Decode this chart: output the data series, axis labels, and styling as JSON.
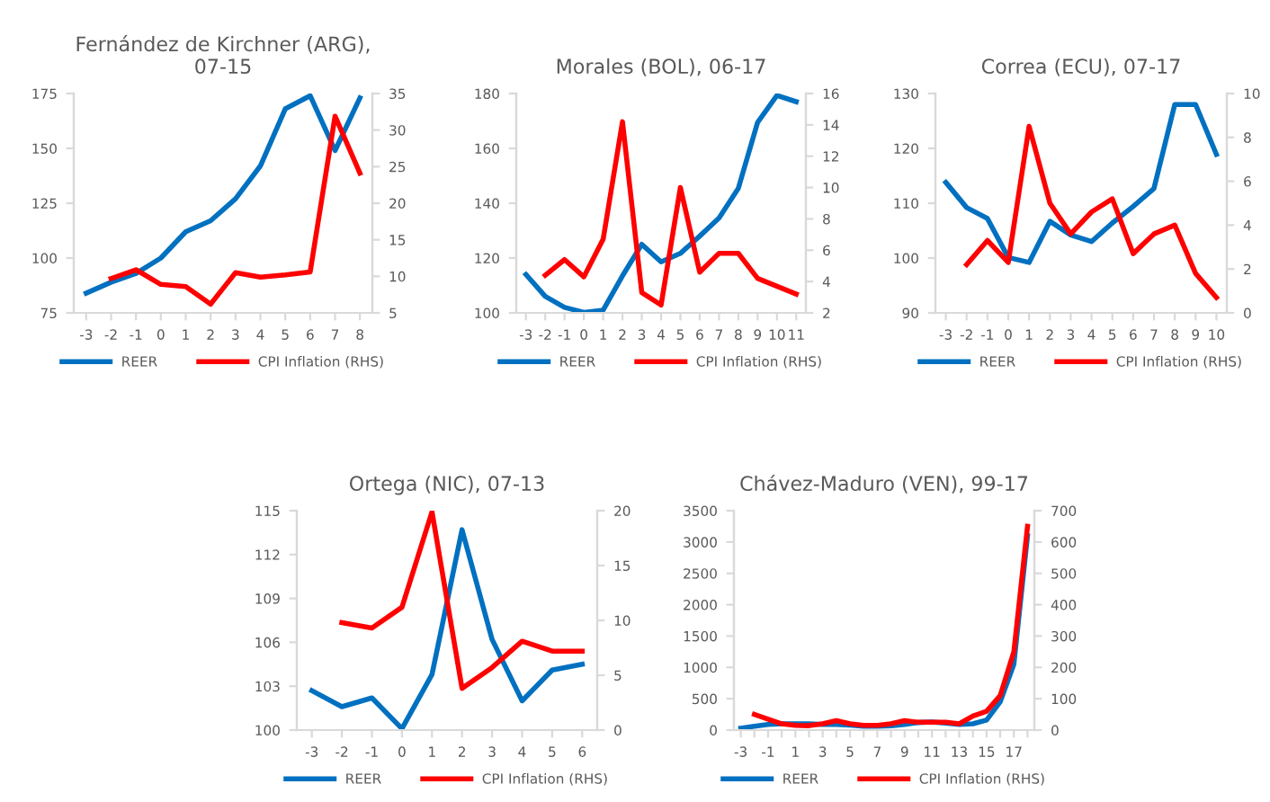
{
  "chart_data": [
    {
      "type": "line",
      "title": "Fernández de Kirchner (ARG),\n07-15",
      "categories": [
        "-3",
        "-2",
        "-1",
        "0",
        "1",
        "2",
        "3",
        "4",
        "5",
        "6",
        "7",
        "8"
      ],
      "ylim": [
        75,
        175
      ],
      "yticks": [
        75,
        100,
        125,
        150,
        175
      ],
      "y2lim": [
        5,
        35
      ],
      "y2ticks": [
        5,
        10,
        15,
        20,
        25,
        30,
        35
      ],
      "legend": "bottom",
      "series": [
        {
          "name": "REER",
          "color": "#0070c0",
          "values": [
            84,
            89,
            93,
            100,
            112,
            117,
            127,
            142,
            168,
            174,
            149,
            173
          ]
        },
        {
          "name": "CPI Inflation (RHS)",
          "color": "#ff0000",
          "axis": "y2",
          "values": [
            null,
            9.7,
            10.9,
            8.9,
            8.6,
            6.2,
            10.5,
            9.9,
            10.2,
            10.6,
            31.9,
            24.1
          ]
        }
      ]
    },
    {
      "type": "line",
      "title": "Morales (BOL), 06-17",
      "categories": [
        "-3",
        "-2",
        "-1",
        "0",
        "1",
        "2",
        "3",
        "4",
        "5",
        "6",
        "7",
        "8",
        "9",
        "10",
        "11"
      ],
      "ylim": [
        100,
        180
      ],
      "yticks": [
        100,
        120,
        140,
        160,
        180
      ],
      "y2lim": [
        2,
        16
      ],
      "y2ticks": [
        2,
        4,
        6,
        8,
        10,
        12,
        14,
        16
      ],
      "legend": "bottom",
      "series": [
        {
          "name": "REER",
          "color": "#0070c0",
          "values": [
            114,
            106,
            102,
            100.2,
            101,
            113.5,
            125,
            118.6,
            121.7,
            128,
            134.6,
            145.4,
            169.5,
            179.3,
            177
          ]
        },
        {
          "name": "CPI Inflation (RHS)",
          "color": "#ff0000",
          "axis": "y2",
          "values": [
            null,
            4.4,
            5.4,
            4.3,
            6.7,
            14.2,
            3.3,
            2.5,
            10.0,
            4.6,
            5.8,
            5.8,
            4.2,
            3.7,
            3.2
          ]
        }
      ]
    },
    {
      "type": "line",
      "title": "Correa (ECU), 07-17",
      "categories": [
        "-3",
        "-2",
        "-1",
        "0",
        "1",
        "2",
        "3",
        "4",
        "5",
        "6",
        "7",
        "8",
        "9",
        "10"
      ],
      "ylim": [
        90,
        130
      ],
      "yticks": [
        90,
        100,
        110,
        120,
        130
      ],
      "y2lim": [
        0,
        10
      ],
      "y2ticks": [
        0,
        2,
        4,
        6,
        8,
        10
      ],
      "legend": "bottom",
      "series": [
        {
          "name": "REER",
          "color": "#0070c0",
          "values": [
            113.8,
            109.2,
            107.2,
            100.1,
            99.2,
            106.7,
            104.2,
            103,
            106.4,
            109.4,
            112.7,
            128,
            128,
            118.9
          ]
        },
        {
          "name": "CPI Inflation (RHS)",
          "color": "#ff0000",
          "axis": "y2",
          "values": [
            null,
            2.2,
            3.3,
            2.3,
            8.5,
            5.0,
            3.6,
            4.6,
            5.2,
            2.7,
            3.6,
            4.0,
            1.8,
            0.7
          ]
        }
      ]
    },
    {
      "type": "line",
      "title": "Ortega (NIC), 07-13",
      "categories": [
        "-3",
        "-2",
        "-1",
        "0",
        "1",
        "2",
        "3",
        "4",
        "5",
        "6"
      ],
      "ylim": [
        100,
        115
      ],
      "yticks": [
        100,
        103,
        106,
        109,
        112,
        115
      ],
      "y2lim": [
        0,
        20
      ],
      "y2ticks": [
        0,
        5,
        10,
        15,
        20
      ],
      "legend": "bottom",
      "series": [
        {
          "name": "REER",
          "color": "#0070c0",
          "values": [
            102.7,
            101.6,
            102.2,
            100.1,
            103.8,
            113.7,
            106.2,
            102,
            104.1,
            104.5
          ]
        },
        {
          "name": "CPI Inflation (RHS)",
          "color": "#ff0000",
          "axis": "y2",
          "values": [
            null,
            9.8,
            9.3,
            11.2,
            19.9,
            3.8,
            5.7,
            8.1,
            7.2,
            7.2
          ]
        }
      ]
    },
    {
      "type": "line",
      "title": "Chávez-Maduro (VEN), 99-17",
      "categories": [
        "-3",
        null,
        "-1",
        null,
        "1",
        null,
        "3",
        null,
        "5",
        null,
        "7",
        null,
        "9",
        null,
        "11",
        null,
        "13",
        null,
        "15",
        null,
        "17",
        null
      ],
      "ylim": [
        0,
        3500
      ],
      "yticks": [
        0,
        500,
        1000,
        1500,
        2000,
        2500,
        3000,
        3500
      ],
      "y2lim": [
        0,
        700
      ],
      "y2ticks": [
        0,
        100,
        200,
        300,
        400,
        500,
        600,
        700
      ],
      "legend": "bottom",
      "series": [
        {
          "name": "REER",
          "color": "#0070c0",
          "values": [
            30,
            60,
            90,
            100,
            100,
            100,
            90,
            90,
            80,
            60,
            60,
            70,
            90,
            120,
            130,
            110,
            90,
            100,
            160,
            450,
            1050,
            3100
          ]
        },
        {
          "name": "CPI Inflation (RHS)",
          "color": "#ff0000",
          "axis": "y2",
          "values": [
            null,
            50,
            35,
            20,
            15,
            14,
            20,
            30,
            20,
            15,
            15,
            20,
            30,
            25,
            25,
            25,
            20,
            45,
            60,
            110,
            250,
            650
          ]
        }
      ]
    }
  ]
}
